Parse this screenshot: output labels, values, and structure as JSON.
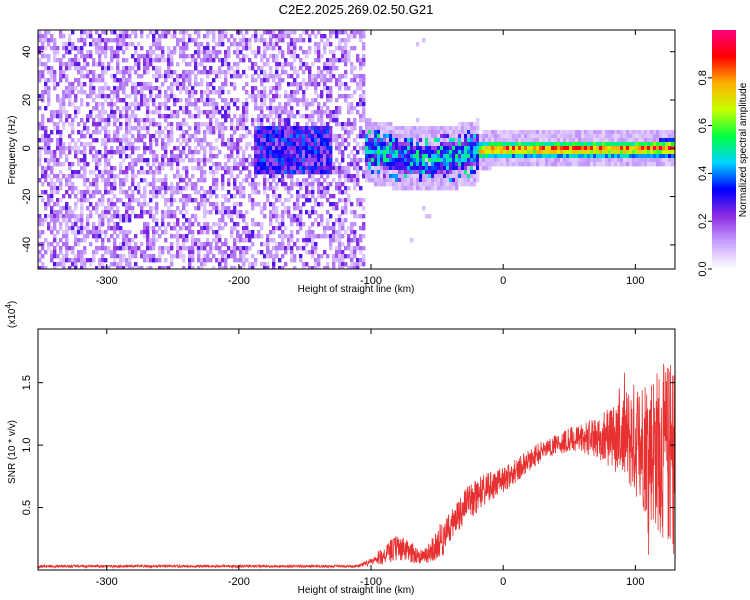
{
  "figure_title": "C2E2.2025.269.02.50.G21",
  "chart_data": [
    {
      "type": "heatmap",
      "xlabel": "Height of straight line (km)",
      "ylabel": "Frequency (Hz)",
      "xlim": [
        -352,
        130
      ],
      "ylim": [
        -50,
        49
      ],
      "xticks": [
        -300,
        -200,
        -100,
        0,
        100
      ],
      "xtick_labels": [
        "-300",
        "-200",
        "-100",
        "0",
        "100"
      ],
      "yticks": [
        -40,
        -20,
        0,
        20,
        40
      ],
      "ytick_labels": [
        "-40",
        "-20",
        "0",
        "20",
        "40"
      ],
      "colorbar": {
        "label": "Normalized spectral amplitude",
        "range": [
          0,
          1
        ],
        "ticks": [
          0.0,
          0.2,
          0.4,
          0.6,
          0.8
        ],
        "tick_labels": [
          "0.0",
          "0.2",
          "0.4",
          "0.6",
          "0.8"
        ],
        "colormap": [
          "#ffffff",
          "#c9a3ff",
          "#8a2be2",
          "#0000ff",
          "#00d5ff",
          "#00ff40",
          "#c8ff00",
          "#ffb000",
          "#ff0000",
          "#ff0080"
        ]
      },
      "regions": [
        {
          "x": [
            -352,
            -106
          ],
          "freq": [
            -50,
            49
          ],
          "amplitude": 0.12,
          "description_value": "noise"
        },
        {
          "x": [
            -106,
            -20
          ],
          "freq_center_start": -3,
          "freq_center_end": 0,
          "amplitude": 0.4
        },
        {
          "x": [
            -20,
            130
          ],
          "freq_center": 0.5,
          "amplitude": 0.85
        }
      ],
      "trace_center": [
        {
          "x": -110,
          "y": 0
        },
        {
          "x": -95,
          "y": -1
        },
        {
          "x": -80,
          "y": -3
        },
        {
          "x": -60,
          "y": -4
        },
        {
          "x": -40,
          "y": -3
        },
        {
          "x": -25,
          "y": -1
        },
        {
          "x": -10,
          "y": 0.5
        },
        {
          "x": 20,
          "y": 0.5
        },
        {
          "x": 60,
          "y": 0.5
        },
        {
          "x": 100,
          "y": 0.5
        },
        {
          "x": 130,
          "y": 1
        }
      ]
    },
    {
      "type": "line",
      "xlabel": "Height of straight line (km)",
      "ylabel": "SNR (10 * v/v)",
      "y_multiplier": "(x10",
      "y_multiplier_exp": "4",
      "y_multiplier_close": ")",
      "xlim": [
        -352,
        130
      ],
      "ylim": [
        0,
        1.93
      ],
      "xticks": [
        -300,
        -200,
        -100,
        0,
        100
      ],
      "xtick_labels": [
        "-300",
        "-200",
        "-100",
        "0",
        "100"
      ],
      "yticks": [
        0.5,
        1.0,
        1.5
      ],
      "ytick_labels": [
        "0.5",
        "1.0",
        "1.5"
      ],
      "series_color": "#e83030",
      "envelope": [
        {
          "x": -352,
          "y": 0.03
        },
        {
          "x": -110,
          "y": 0.03
        },
        {
          "x": -100,
          "y": 0.06
        },
        {
          "x": -90,
          "y": 0.12
        },
        {
          "x": -80,
          "y": 0.18
        },
        {
          "x": -70,
          "y": 0.14
        },
        {
          "x": -60,
          "y": 0.1
        },
        {
          "x": -50,
          "y": 0.2
        },
        {
          "x": -40,
          "y": 0.35
        },
        {
          "x": -30,
          "y": 0.5
        },
        {
          "x": -20,
          "y": 0.6
        },
        {
          "x": -10,
          "y": 0.66
        },
        {
          "x": 0,
          "y": 0.72
        },
        {
          "x": 10,
          "y": 0.8
        },
        {
          "x": 20,
          "y": 0.88
        },
        {
          "x": 30,
          "y": 0.96
        },
        {
          "x": 40,
          "y": 1.01
        },
        {
          "x": 50,
          "y": 1.04
        },
        {
          "x": 60,
          "y": 1.05
        },
        {
          "x": 70,
          "y": 1.06
        },
        {
          "x": 80,
          "y": 1.07
        },
        {
          "x": 90,
          "y": 1.07
        },
        {
          "x": 100,
          "y": 1.05
        },
        {
          "x": 110,
          "y": 1.0
        },
        {
          "x": 120,
          "y": 0.95
        },
        {
          "x": 130,
          "y": 0.9
        }
      ],
      "noise_amplitude": [
        {
          "x": -352,
          "y": 0.01
        },
        {
          "x": -110,
          "y": 0.01
        },
        {
          "x": -90,
          "y": 0.06
        },
        {
          "x": -60,
          "y": 0.06
        },
        {
          "x": -40,
          "y": 0.12
        },
        {
          "x": -20,
          "y": 0.15
        },
        {
          "x": 0,
          "y": 0.1
        },
        {
          "x": 40,
          "y": 0.08
        },
        {
          "x": 70,
          "y": 0.15
        },
        {
          "x": 90,
          "y": 0.35
        },
        {
          "x": 110,
          "y": 0.6
        },
        {
          "x": 130,
          "y": 0.8
        }
      ]
    }
  ]
}
